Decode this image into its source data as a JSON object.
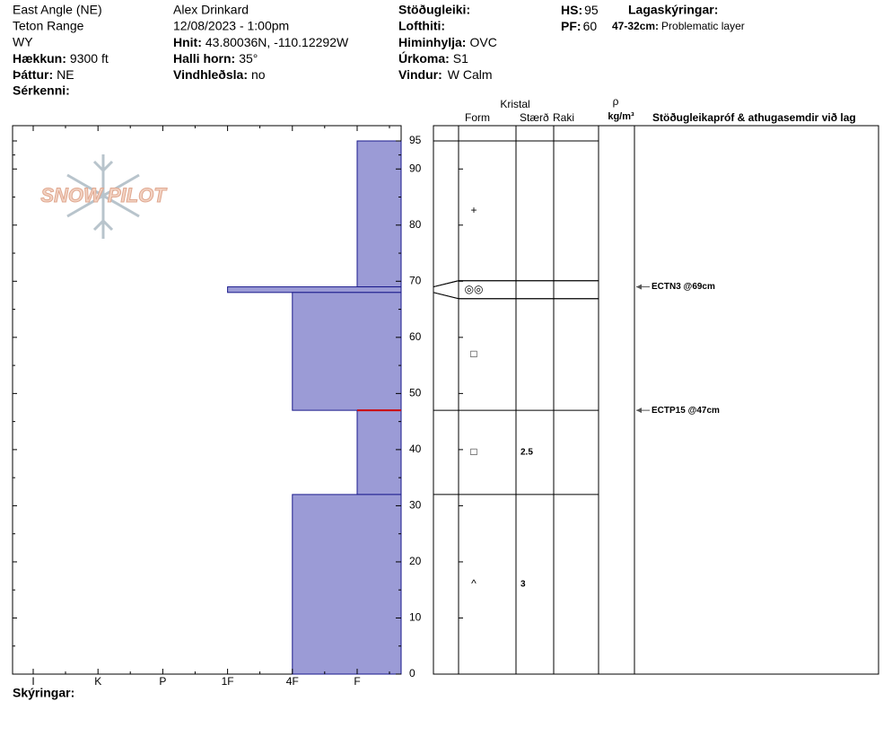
{
  "header": {
    "location": "East Angle (NE)",
    "range": "Teton Range",
    "state": "WY",
    "elevation_label": "Hækkun:",
    "elevation": "9300 ft",
    "aspect_label": "Þáttur:",
    "aspect": "NE",
    "features_label": "Sérkenni:",
    "observer": "Alex Drinkard",
    "datetime": "12/08/2023 - 1:00pm",
    "coords_label": "Hnit:",
    "coords": "43.80036N, -110.12292W",
    "slope_label": "Halli horn:",
    "slope": "35°",
    "wind_loading_label": "Vindhleðsla:",
    "wind_loading": "no",
    "stability_label": "Stöðugleiki:",
    "air_temp_label": "Lofthiti:",
    "sky_label": "Himinhylja:",
    "sky": "OVC",
    "precip_label": "Úrkoma:",
    "precip": "S1",
    "wind_label": "Vindur:",
    "wind": "W Calm",
    "hs_label": "HS:",
    "hs": 95,
    "pf_label": "PF:",
    "pf": 60,
    "legend_label": "Lagaskýringar:",
    "problem_range": "47-32cm:",
    "problem_text": "Problematic layer"
  },
  "logo": "SNOW PILOT",
  "footer": "Skýringar:",
  "chart_data": {
    "type": "snow-profile",
    "hardness": [
      "I",
      "K",
      "P",
      "1F",
      "4F",
      "F"
    ],
    "ylim": [
      0,
      95
    ],
    "yticks": [
      0,
      10,
      20,
      30,
      40,
      50,
      60,
      70,
      80,
      90,
      95
    ],
    "color": "#9b9bd6",
    "columns": {
      "crystal": "Kristal",
      "form": "Form",
      "size": "Stærð",
      "moisture": "Raki",
      "rho": "ρ",
      "density_unit": "kg/m³",
      "comments": "Stöðugleikapróf & athugasemdir við lag"
    },
    "layers": [
      {
        "top": 95,
        "bottom": 69,
        "hardness": "F",
        "form": "+"
      },
      {
        "top": 69,
        "bottom": 68,
        "hardness": "1F",
        "form": "◎◎"
      },
      {
        "top": 68,
        "bottom": 47,
        "hardness": "4F",
        "form": "□"
      },
      {
        "top": 47,
        "bottom": 32,
        "hardness": "F",
        "form": "□",
        "size": 2.5
      },
      {
        "top": 32,
        "bottom": 0,
        "hardness": "4F",
        "form": "^",
        "size": 3
      }
    ],
    "tests": [
      {
        "label": "ECTN3 @69cm",
        "height": 69
      },
      {
        "label": "ECTP15 @47cm",
        "height": 47
      }
    ]
  }
}
